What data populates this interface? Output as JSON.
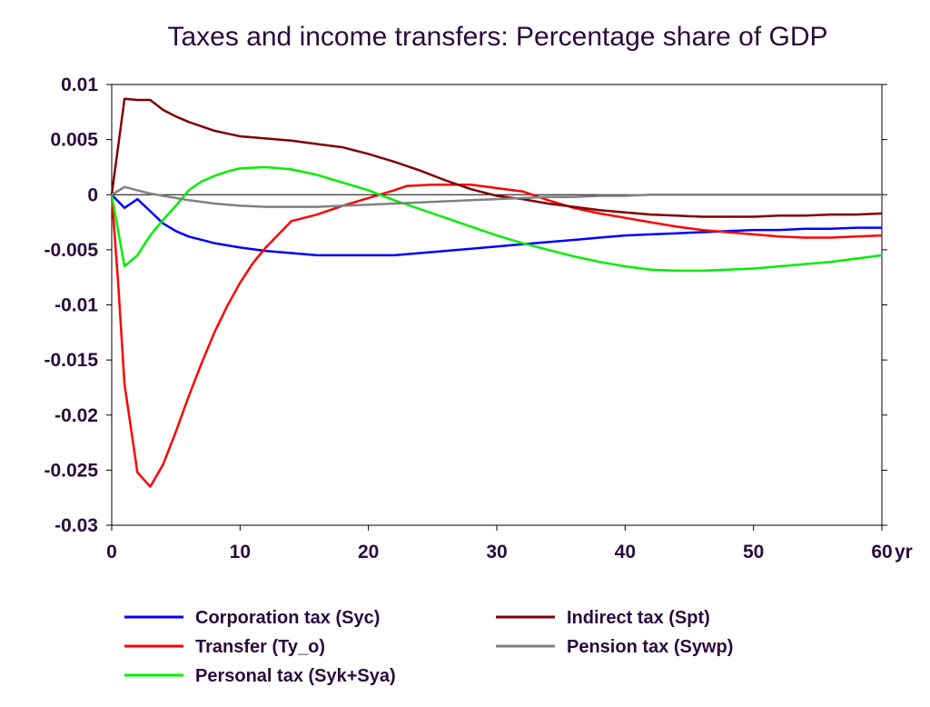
{
  "chart_data": {
    "type": "line",
    "title": "Taxes and income transfers: Percentage share of GDP",
    "x_unit_label": "yr",
    "xlim": [
      0,
      60
    ],
    "ylim": [
      -0.03,
      0.01
    ],
    "x_ticks": [
      0,
      10,
      20,
      30,
      40,
      50,
      60
    ],
    "x_tick_labels": [
      "0",
      "10",
      "20",
      "30",
      "40",
      "50",
      "60"
    ],
    "y_ticks": [
      0.01,
      0.005,
      0,
      -0.005,
      -0.01,
      -0.015,
      -0.02,
      -0.025,
      -0.03
    ],
    "y_tick_labels": [
      "0.01",
      "0.005",
      "0",
      "-0.005",
      "-0.01",
      "-0.015",
      "-0.02",
      "-0.025",
      "-0.03"
    ],
    "grid": false,
    "zero_line": true,
    "legend_position": "bottom",
    "series": [
      {
        "name": "Corporation tax (Syc)",
        "color": "#0000ff",
        "x": [
          0,
          1,
          2,
          3,
          4,
          5,
          6,
          8,
          10,
          12,
          14,
          16,
          18,
          20,
          22,
          24,
          26,
          28,
          30,
          32,
          34,
          36,
          38,
          40,
          42,
          44,
          46,
          48,
          50,
          52,
          54,
          56,
          58,
          60
        ],
        "y": [
          0,
          -0.0012,
          -0.0004,
          -0.0015,
          -0.0026,
          -0.0033,
          -0.0038,
          -0.0044,
          -0.0048,
          -0.0051,
          -0.0053,
          -0.0055,
          -0.0055,
          -0.0055,
          -0.0055,
          -0.0053,
          -0.0051,
          -0.0049,
          -0.0047,
          -0.0045,
          -0.0043,
          -0.0041,
          -0.0039,
          -0.0037,
          -0.0036,
          -0.0035,
          -0.0034,
          -0.0033,
          -0.0032,
          -0.0032,
          -0.0031,
          -0.0031,
          -0.003,
          -0.003
        ]
      },
      {
        "name": "Transfer (Ty_o)",
        "color": "#ff0000",
        "x": [
          0,
          0.5,
          1,
          2,
          3,
          4,
          5,
          6,
          7,
          8,
          9,
          10,
          11,
          12,
          13,
          14,
          16,
          18,
          20,
          22,
          23,
          25,
          28,
          30,
          32,
          34,
          36,
          38,
          40,
          42,
          44,
          46,
          48,
          50,
          52,
          54,
          56,
          58,
          60
        ],
        "y": [
          0,
          -0.008,
          -0.0172,
          -0.0252,
          -0.0265,
          -0.0245,
          -0.0215,
          -0.0183,
          -0.0153,
          -0.0125,
          -0.0101,
          -0.008,
          -0.0062,
          -0.0048,
          -0.0036,
          -0.0024,
          -0.0018,
          -0.001,
          -0.0003,
          0.0004,
          0.0008,
          0.0009,
          0.0009,
          0.0006,
          0.0003,
          -0.0005,
          -0.0012,
          -0.0017,
          -0.0021,
          -0.0025,
          -0.0029,
          -0.0032,
          -0.0034,
          -0.0036,
          -0.0038,
          -0.0039,
          -0.0039,
          -0.0038,
          -0.0037
        ]
      },
      {
        "name": "Personal tax (Syk+Sya)",
        "color": "#00ee00",
        "x": [
          0,
          1,
          2,
          3,
          4,
          5,
          6,
          7,
          8,
          9,
          10,
          12,
          14,
          16,
          18,
          20,
          22,
          24,
          26,
          28,
          30,
          32,
          34,
          36,
          38,
          40,
          42,
          44,
          46,
          48,
          50,
          52,
          54,
          56,
          58,
          60
        ],
        "y": [
          0,
          -0.0065,
          -0.0055,
          -0.0037,
          -0.0023,
          -0.001,
          0.0004,
          0.0012,
          0.0017,
          0.0021,
          0.0024,
          0.0025,
          0.0023,
          0.0018,
          0.0011,
          0.0004,
          -0.0005,
          -0.0013,
          -0.0021,
          -0.0029,
          -0.0037,
          -0.0044,
          -0.005,
          -0.0056,
          -0.0061,
          -0.0065,
          -0.0068,
          -0.0069,
          -0.0069,
          -0.0068,
          -0.0067,
          -0.0065,
          -0.0063,
          -0.0061,
          -0.0058,
          -0.0055
        ]
      },
      {
        "name": "Indirect tax (Spt)",
        "color": "#800000",
        "x": [
          0,
          1,
          2,
          3,
          4,
          5,
          6,
          8,
          10,
          12,
          14,
          16,
          18,
          20,
          22,
          24,
          26,
          28,
          30,
          32,
          34,
          36,
          38,
          40,
          42,
          44,
          46,
          48,
          50,
          52,
          54,
          56,
          58,
          60
        ],
        "y": [
          0,
          0.0087,
          0.0086,
          0.0086,
          0.0077,
          0.0071,
          0.0066,
          0.0058,
          0.0053,
          0.0051,
          0.0049,
          0.0046,
          0.0043,
          0.0037,
          0.003,
          0.0022,
          0.0013,
          0.0005,
          -0.0001,
          -0.0004,
          -0.0008,
          -0.0011,
          -0.0014,
          -0.0016,
          -0.0018,
          -0.0019,
          -0.002,
          -0.002,
          -0.002,
          -0.0019,
          -0.0019,
          -0.0018,
          -0.0018,
          -0.0017
        ]
      },
      {
        "name": "Pension tax (Sywp)",
        "color": "#808080",
        "x": [
          0,
          1,
          2,
          3,
          4,
          5,
          6,
          8,
          10,
          12,
          14,
          16,
          18,
          20,
          22,
          24,
          26,
          28,
          30,
          32,
          34,
          36,
          38,
          40,
          42,
          44,
          46,
          48,
          50,
          52,
          54,
          56,
          58,
          60
        ],
        "y": [
          0,
          0.0007,
          0.0004,
          0.0001,
          -0.0001,
          -0.0003,
          -0.0005,
          -0.0008,
          -0.001,
          -0.0011,
          -0.0011,
          -0.0011,
          -0.001,
          -0.0009,
          -0.0008,
          -0.0007,
          -0.0006,
          -0.0005,
          -0.0004,
          -0.0003,
          -0.0002,
          -0.0002,
          -0.0001,
          -0.0001,
          0,
          0,
          0,
          0,
          0,
          0,
          0,
          0,
          0,
          0
        ]
      }
    ]
  }
}
